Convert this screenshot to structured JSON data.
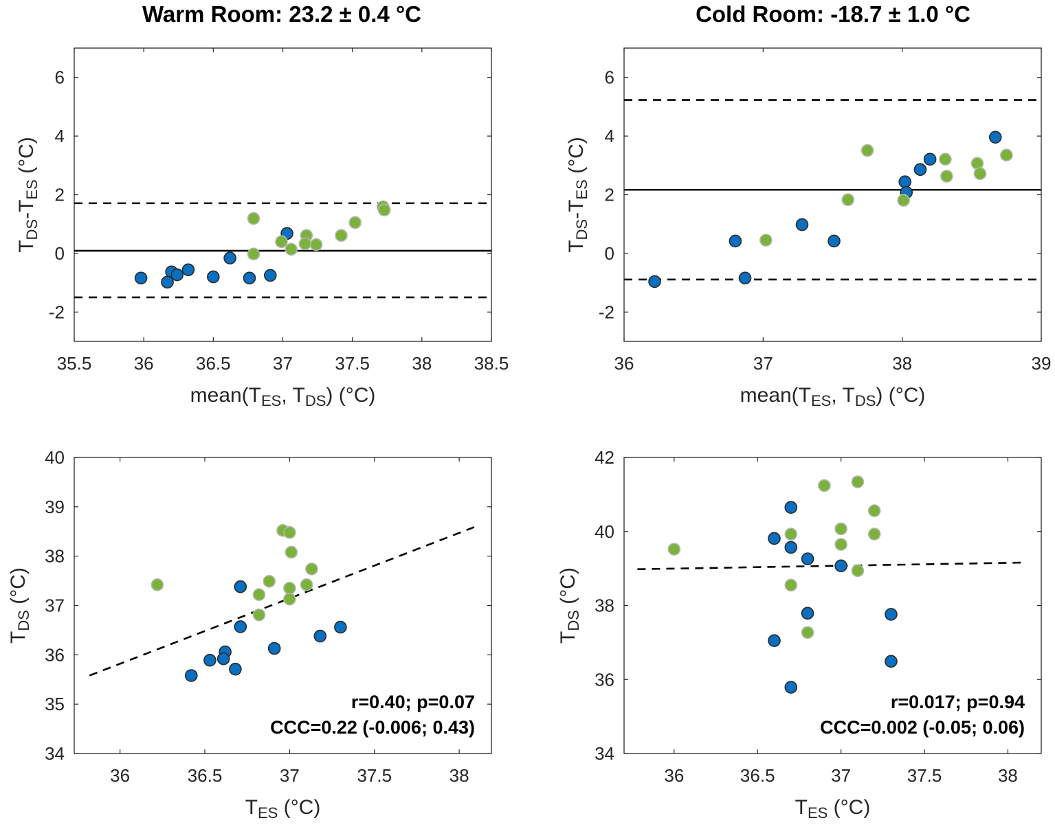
{
  "colors": {
    "group1": "#0a6fbf",
    "group1_edge": "#2b2b2b",
    "group2": "#7bb33a",
    "group2_edge": "#b5b5b5",
    "line": "#000000"
  },
  "chart_data": [
    {
      "id": "warm-bland-altman",
      "type": "scatter",
      "title": "Warm Room: 23.2 ± 0.4 °C",
      "xlabel": [
        {
          "t": "mean(T"
        },
        {
          "t": "ES",
          "sub": true
        },
        {
          "t": ", T"
        },
        {
          "t": "DS",
          "sub": true
        },
        {
          "t": ") (°C)"
        }
      ],
      "ylabel": [
        {
          "t": "T"
        },
        {
          "t": "DS",
          "sub": true
        },
        {
          "t": "-T"
        },
        {
          "t": "ES",
          "sub": true
        },
        {
          "t": " (°C)"
        }
      ],
      "xlim": [
        35.5,
        38.5
      ],
      "ylim": [
        -3,
        7
      ],
      "xticks": [
        "35.5",
        "36",
        "36.5",
        "37",
        "37.5",
        "38",
        "38.5"
      ],
      "yticks": [
        "-2",
        "0",
        "2",
        "4",
        "6"
      ],
      "hlines": [
        {
          "y": 0.09,
          "style": "solid",
          "name": "mean-bias"
        },
        {
          "y": 1.71,
          "style": "dashed",
          "name": "upper-loa"
        },
        {
          "y": -1.5,
          "style": "dashed",
          "name": "lower-loa"
        }
      ],
      "series": [
        {
          "name": "group1",
          "x": [
            35.98,
            36.2,
            36.17,
            36.24,
            36.32,
            36.5,
            36.62,
            36.76,
            36.91,
            37.03
          ],
          "y": [
            -0.84,
            -0.63,
            -0.98,
            -0.73,
            -0.56,
            -0.8,
            -0.16,
            -0.84,
            -0.75,
            0.68
          ]
        },
        {
          "name": "group2",
          "x": [
            36.79,
            36.79,
            36.99,
            37.06,
            37.17,
            37.16,
            37.24,
            37.42,
            37.52,
            37.72,
            37.73
          ],
          "y": [
            1.19,
            -0.02,
            0.4,
            0.14,
            0.61,
            0.33,
            0.3,
            0.61,
            1.05,
            1.59,
            1.48
          ]
        }
      ]
    },
    {
      "id": "cold-bland-altman",
      "type": "scatter",
      "title": "Cold Room: -18.7 ± 1.0 °C",
      "xlabel": [
        {
          "t": "mean(T"
        },
        {
          "t": "ES",
          "sub": true
        },
        {
          "t": ", T"
        },
        {
          "t": "DS",
          "sub": true
        },
        {
          "t": ") (°C)"
        }
      ],
      "ylabel": [
        {
          "t": "T"
        },
        {
          "t": "DS",
          "sub": true
        },
        {
          "t": "-T"
        },
        {
          "t": "ES",
          "sub": true
        },
        {
          "t": " (°C)"
        }
      ],
      "xlim": [
        36,
        39
      ],
      "ylim": [
        -3,
        7
      ],
      "xticks": [
        "36",
        "37",
        "38",
        "39"
      ],
      "yticks": [
        "-2",
        "0",
        "2",
        "4",
        "6"
      ],
      "hlines": [
        {
          "y": 2.17,
          "style": "solid",
          "name": "mean-bias"
        },
        {
          "y": 5.23,
          "style": "dashed",
          "name": "upper-loa"
        },
        {
          "y": -0.89,
          "style": "dashed",
          "name": "lower-loa"
        }
      ],
      "series": [
        {
          "name": "group1",
          "x": [
            36.22,
            36.8,
            36.87,
            37.28,
            37.51,
            38.02,
            38.03,
            38.13,
            38.2,
            38.67
          ],
          "y": [
            -0.96,
            0.42,
            -0.84,
            0.98,
            0.42,
            2.44,
            2.08,
            2.86,
            3.21,
            3.96
          ]
        },
        {
          "name": "group2",
          "x": [
            37.02,
            37.61,
            37.75,
            38.01,
            38.31,
            38.32,
            38.54,
            38.56,
            38.75
          ],
          "y": [
            0.45,
            1.83,
            3.51,
            1.81,
            3.21,
            2.63,
            3.07,
            2.72,
            3.35
          ]
        }
      ]
    },
    {
      "id": "warm-correlation",
      "type": "scatter",
      "xlabel": [
        {
          "t": "T"
        },
        {
          "t": "ES",
          "sub": true
        },
        {
          "t": " (°C)"
        }
      ],
      "ylabel": [
        {
          "t": "T"
        },
        {
          "t": "DS",
          "sub": true
        },
        {
          "t": " (°C)"
        }
      ],
      "xlim": [
        35.73,
        38.19
      ],
      "ylim": [
        34,
        40
      ],
      "xticks": [
        "36",
        "36.5",
        "37",
        "37.5",
        "38"
      ],
      "yticks": [
        "34",
        "35",
        "36",
        "37",
        "38",
        "39",
        "40"
      ],
      "regression": {
        "x": [
          35.82,
          38.09
        ],
        "y": [
          35.58,
          38.59
        ]
      },
      "annotations": [
        "r=0.40; p=0.07",
        "CCC=0.22 (-0.006; 0.43)"
      ],
      "series": [
        {
          "name": "group1",
          "x": [
            36.71,
            36.71,
            36.91,
            36.62,
            36.61,
            36.53,
            36.68,
            36.42,
            37.18,
            37.3
          ],
          "y": [
            37.38,
            36.57,
            36.13,
            36.06,
            35.92,
            35.89,
            35.71,
            35.58,
            36.38,
            36.56
          ]
        },
        {
          "name": "group2",
          "x": [
            36.22,
            36.96,
            37.0,
            37.01,
            37.13,
            37.1,
            36.88,
            36.82,
            37.0,
            37.0,
            36.82
          ],
          "y": [
            37.42,
            38.52,
            38.48,
            38.08,
            37.74,
            37.42,
            37.49,
            37.22,
            37.35,
            37.13,
            36.81
          ]
        }
      ]
    },
    {
      "id": "cold-correlation",
      "type": "scatter",
      "xlabel": [
        {
          "t": "T"
        },
        {
          "t": "ES",
          "sub": true
        },
        {
          "t": " (°C)"
        }
      ],
      "ylabel": [
        {
          "t": "T"
        },
        {
          "t": "DS",
          "sub": true
        },
        {
          "t": " (°C)"
        }
      ],
      "xlim": [
        35.7,
        38.2
      ],
      "ylim": [
        34,
        42
      ],
      "xticks": [
        "36",
        "36.5",
        "37",
        "37.5",
        "38"
      ],
      "yticks": [
        "34",
        "36",
        "38",
        "40",
        "42"
      ],
      "regression": {
        "x": [
          35.78,
          38.1
        ],
        "y": [
          38.98,
          39.16
        ]
      },
      "annotations": [
        "r=0.017; p=0.94",
        "CCC=0.002 (-0.05; 0.06)"
      ],
      "series": [
        {
          "name": "group1",
          "x": [
            36.7,
            36.6,
            36.7,
            36.8,
            37.0,
            36.8,
            37.3,
            36.6,
            37.3,
            36.7
          ],
          "y": [
            40.65,
            39.81,
            39.57,
            39.26,
            39.07,
            37.79,
            37.76,
            37.05,
            36.49,
            35.79
          ]
        },
        {
          "name": "group2",
          "x": [
            36.0,
            36.9,
            37.1,
            37.2,
            36.7,
            37.0,
            37.2,
            37.0,
            37.1,
            36.7,
            36.8
          ],
          "y": [
            39.52,
            41.24,
            41.34,
            40.56,
            39.93,
            40.07,
            39.93,
            39.65,
            38.94,
            38.55,
            37.27
          ]
        }
      ]
    }
  ]
}
